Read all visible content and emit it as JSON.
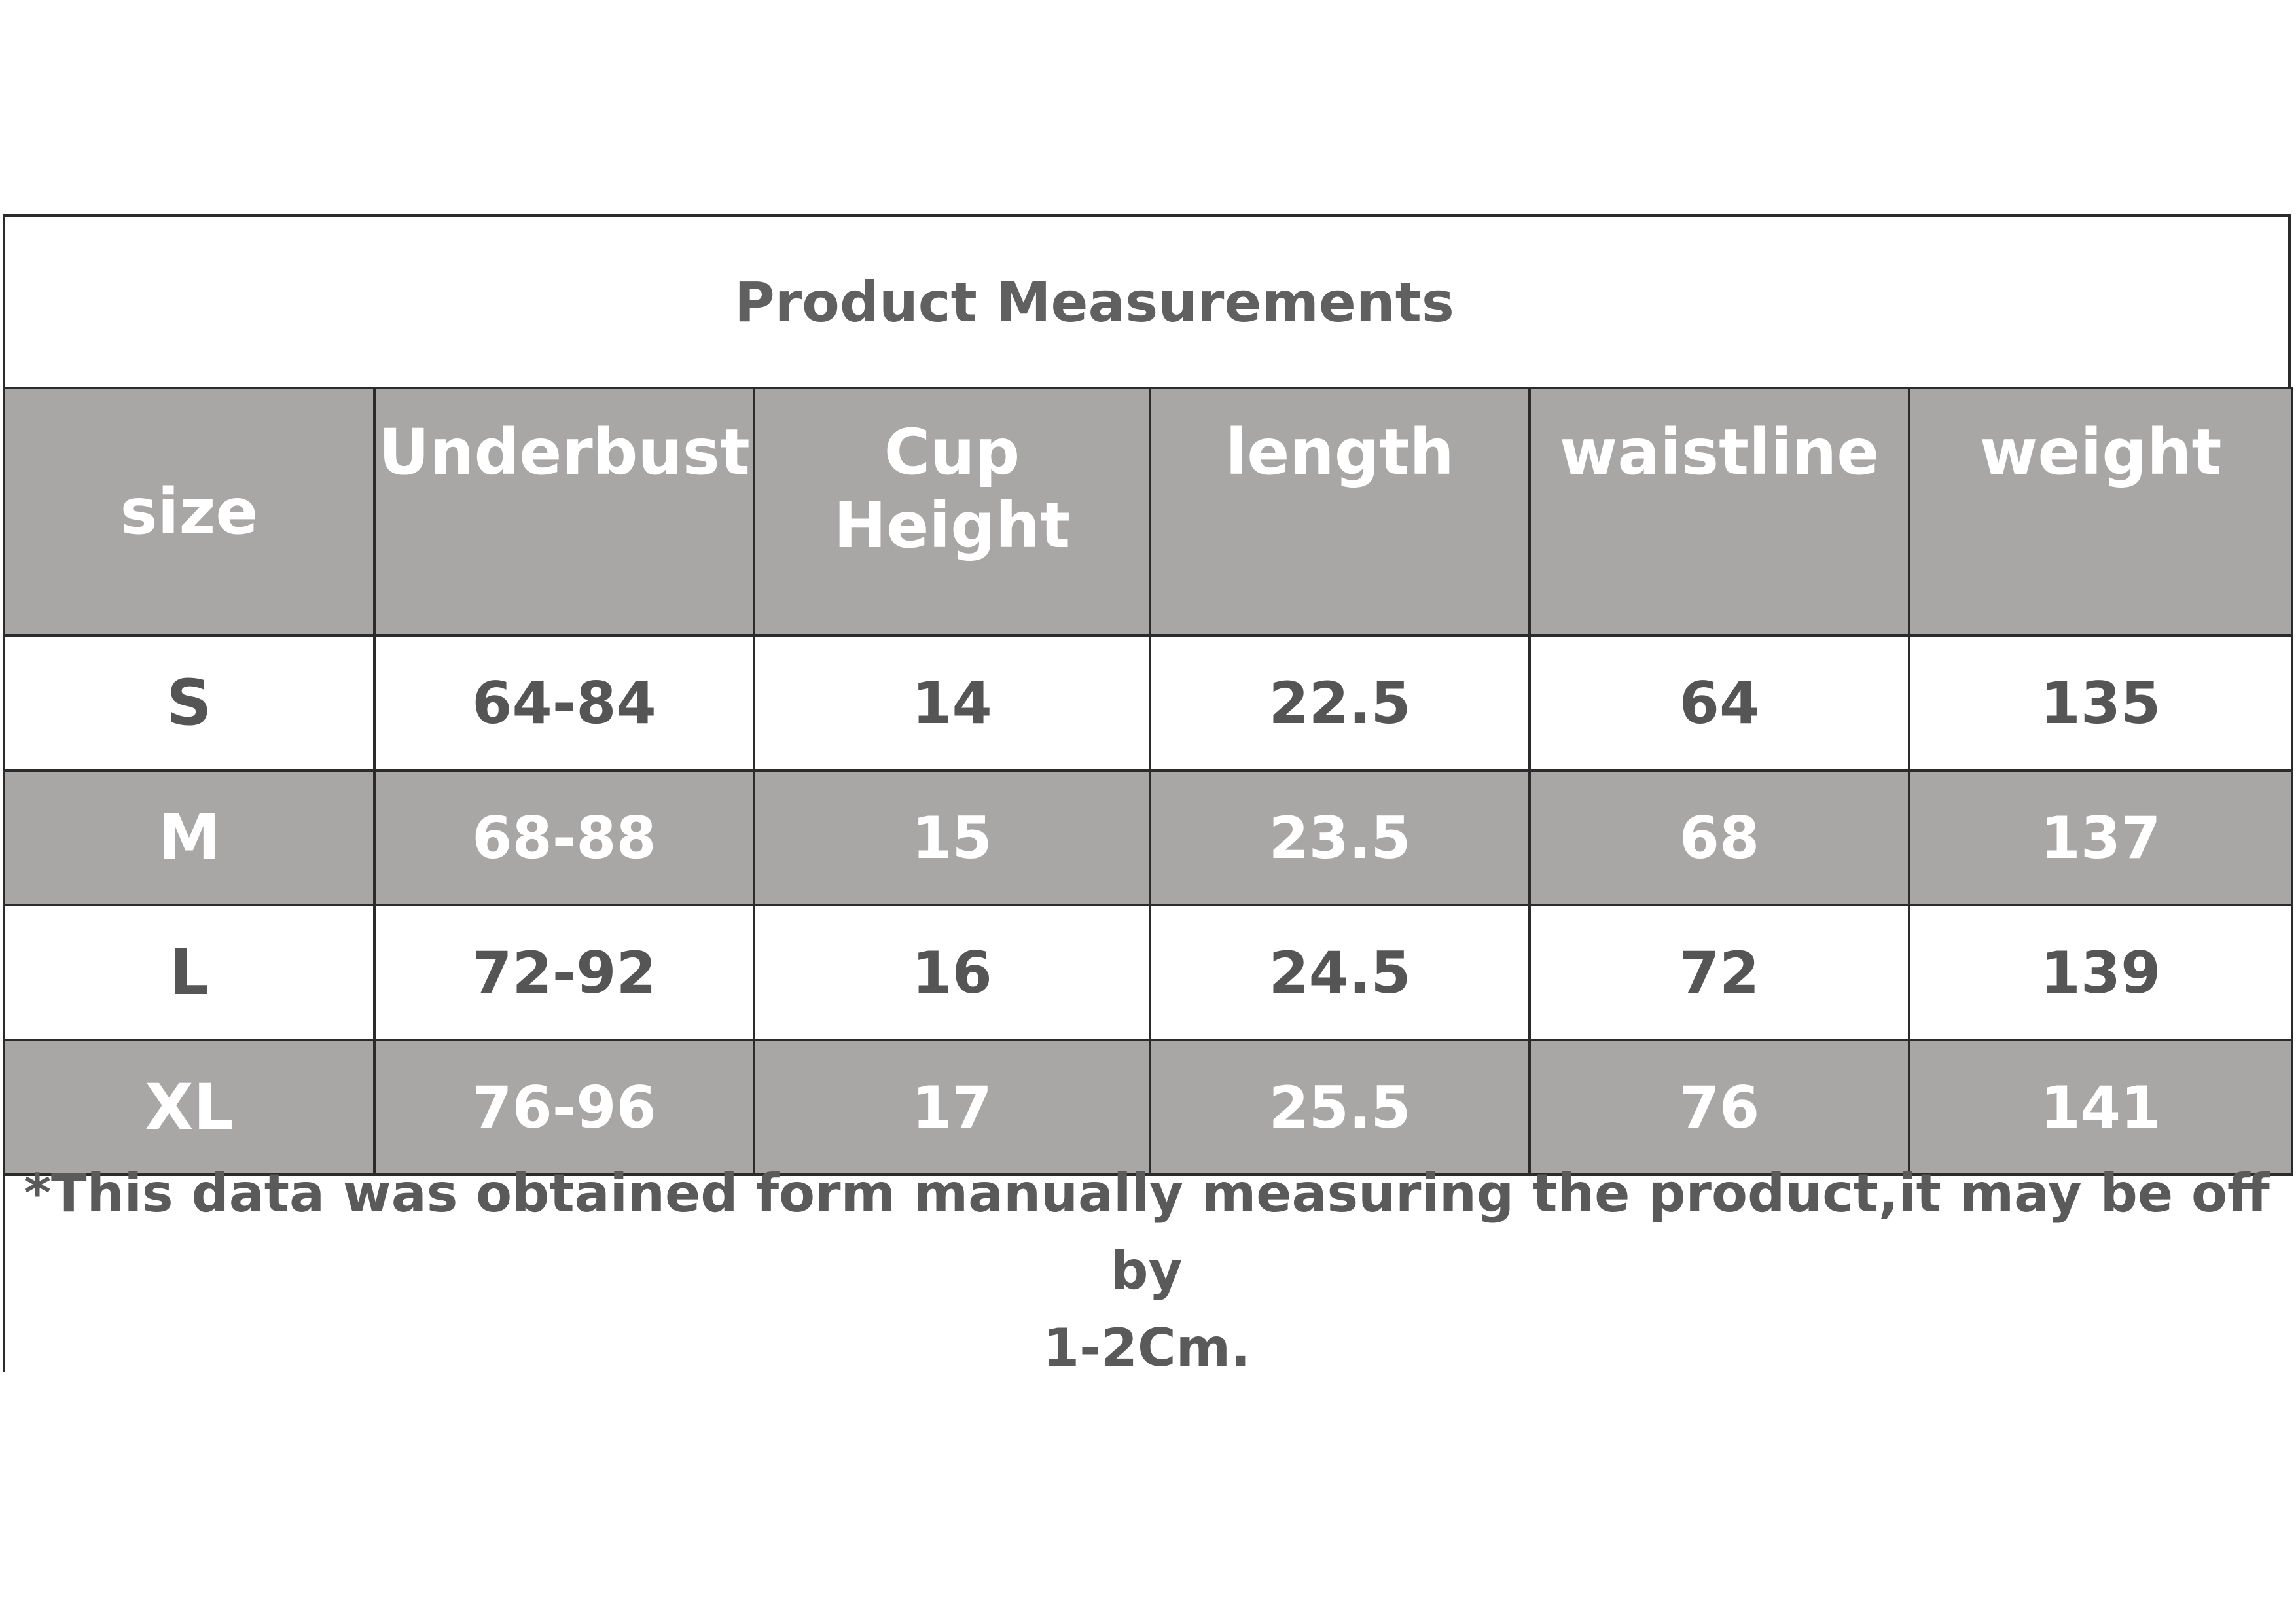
{
  "title": "Product Measurements",
  "table": {
    "headers": [
      "size",
      "Underbust",
      "Cup Height",
      "length",
      "waistline",
      "weight"
    ],
    "rows": [
      [
        "S",
        "64-84",
        "14",
        "22.5",
        "64",
        "135"
      ],
      [
        "M",
        "68-88",
        "15",
        "23.5",
        "68",
        "137"
      ],
      [
        "L",
        "72-92",
        "16",
        "24.5",
        "72",
        "139"
      ],
      [
        "XL",
        "76-96",
        "17",
        "25.5",
        "76",
        "141"
      ]
    ]
  },
  "note": {
    "line1": "*This data was obtained form manually measuring the product,it may be off by",
    "line2": "1-2Cm."
  },
  "colors": {
    "header_bg": "#a9a6a6",
    "border": "#2b2b2b",
    "text_dark": "#555555",
    "text_light": "#ffffff"
  }
}
